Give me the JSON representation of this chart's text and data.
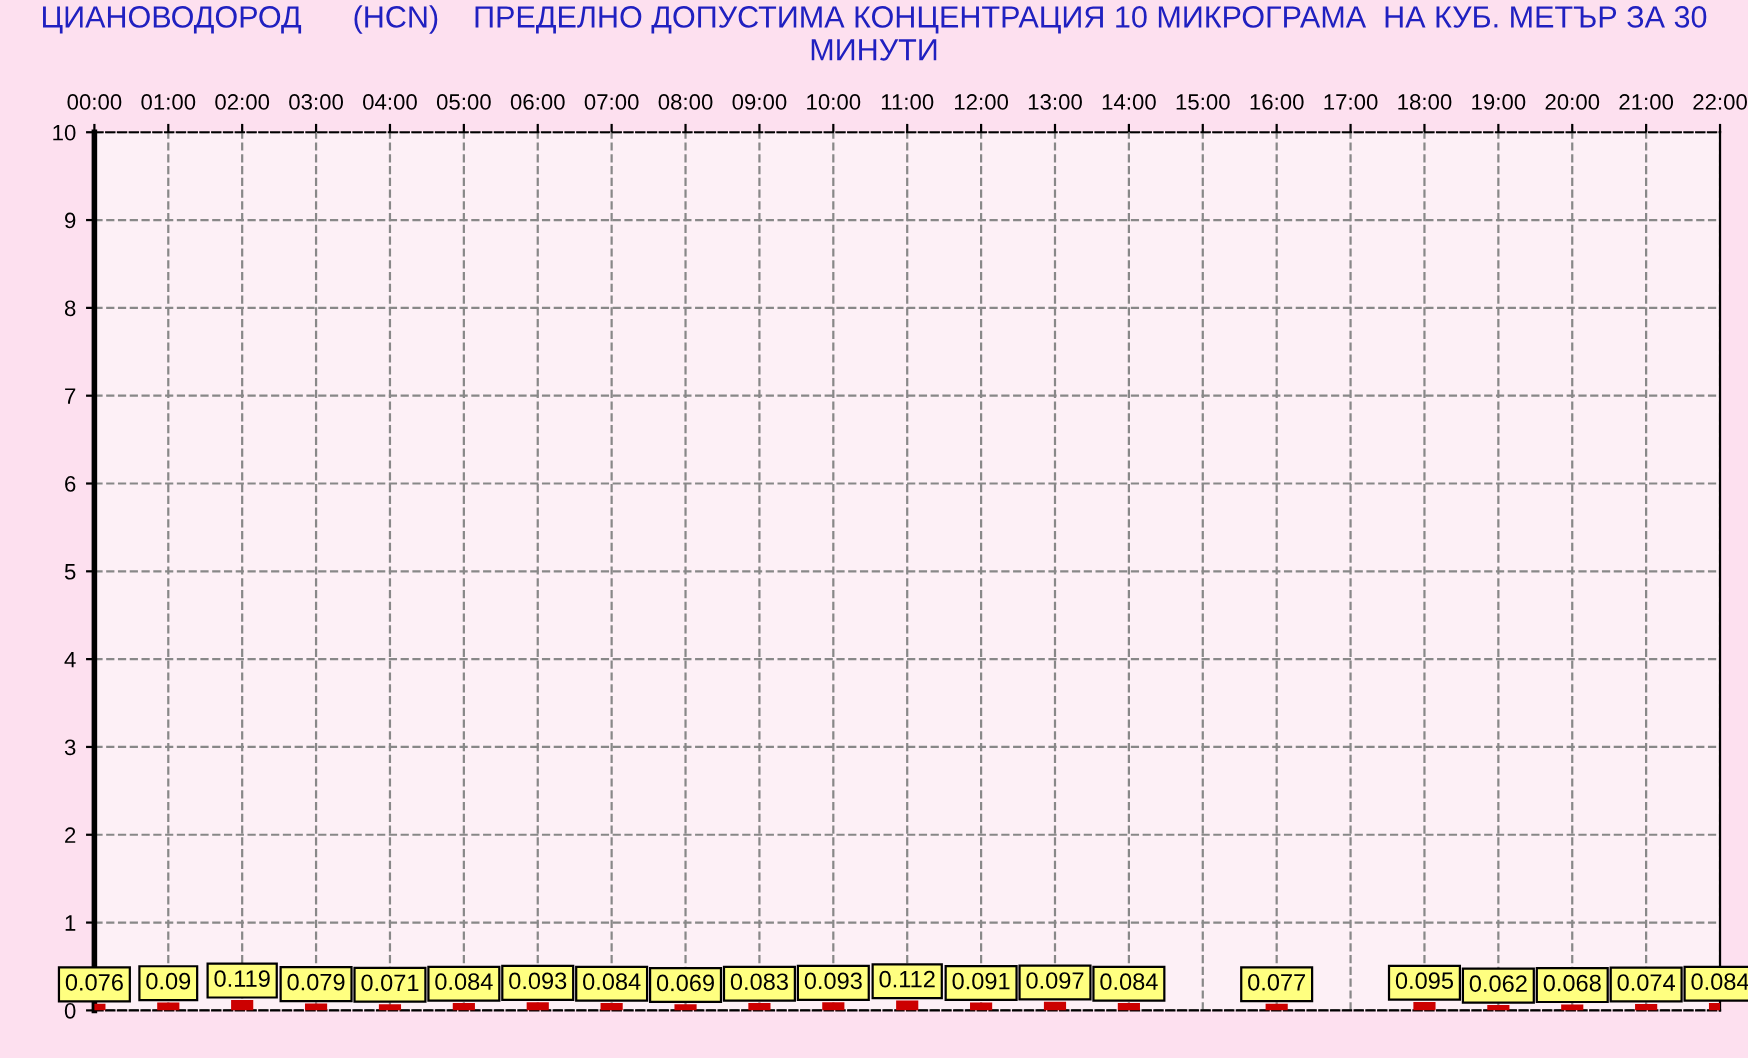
{
  "chart_data": {
    "type": "bar",
    "title": "ЦИАНОВОДОРОД      (HCN)    ПРЕДЕЛНО ДОПУСТИМА КОНЦЕНТРАЦИЯ 10 МИКРОГРАМА  НА КУБ. МЕТЪР ЗА 30 МИНУТИ",
    "categories": [
      "00:00",
      "01:00",
      "02:00",
      "03:00",
      "04:00",
      "05:00",
      "06:00",
      "07:00",
      "08:00",
      "09:00",
      "10:00",
      "11:00",
      "12:00",
      "13:00",
      "14:00",
      "15:00",
      "16:00",
      "17:00",
      "18:00",
      "19:00",
      "20:00",
      "21:00",
      "22:00"
    ],
    "values": [
      0.076,
      0.09,
      0.119,
      0.079,
      0.071,
      0.084,
      0.093,
      0.084,
      0.069,
      0.083,
      0.093,
      0.112,
      0.091,
      0.097,
      0.084,
      null,
      0.077,
      null,
      0.095,
      0.062,
      0.068,
      0.074,
      0.084
    ],
    "color": "#cc0000",
    "data_labels": true,
    "ylim": [
      0,
      10
    ],
    "yticks": [
      0,
      1,
      2,
      3,
      4,
      5,
      6,
      7,
      8,
      9,
      10
    ],
    "grid": true
  }
}
